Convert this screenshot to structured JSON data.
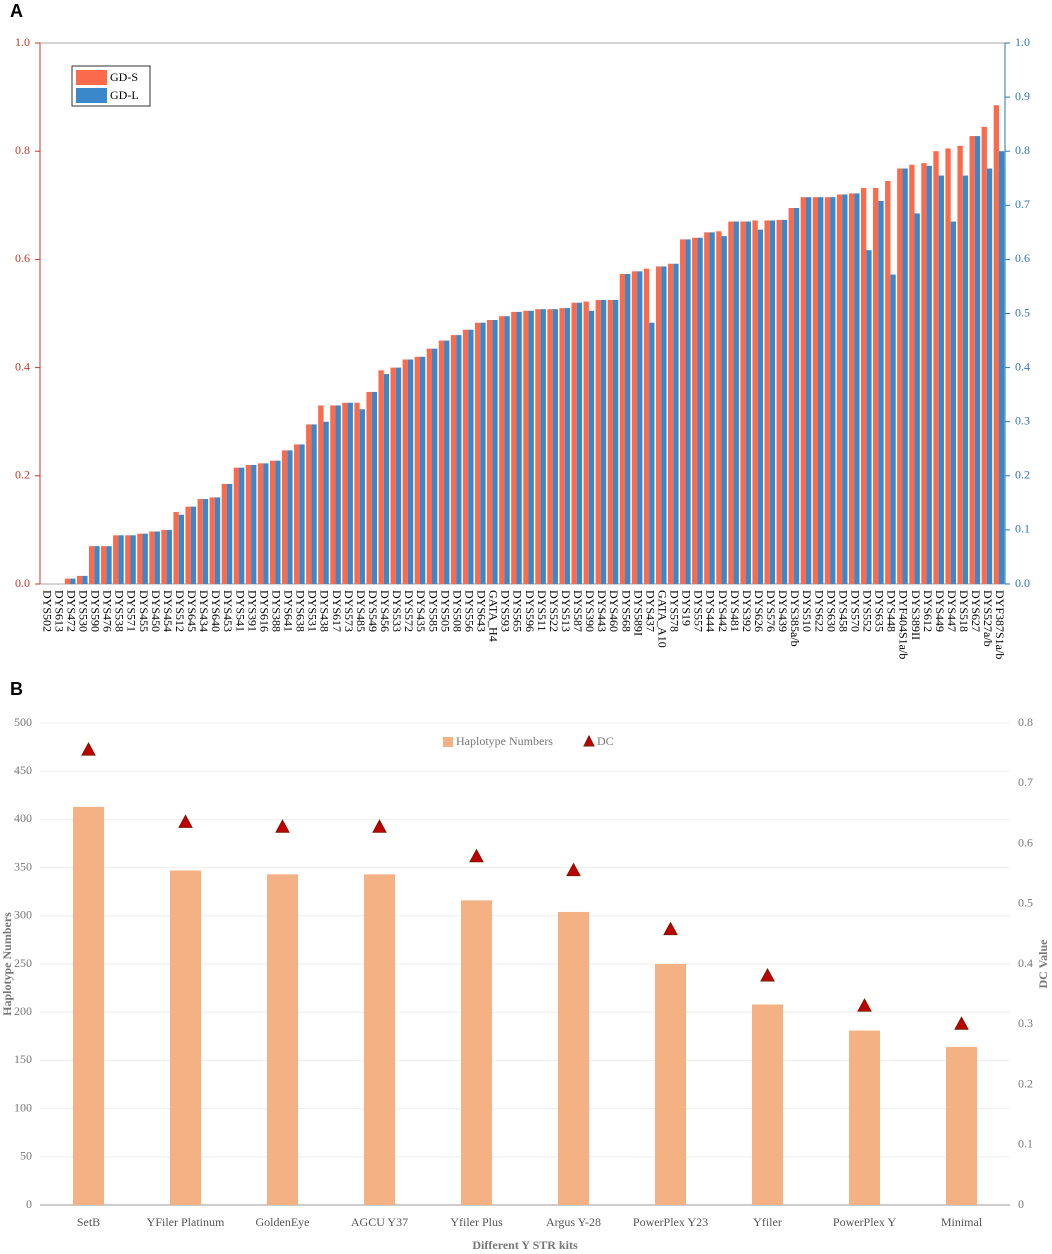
{
  "chart_data": [
    {
      "type": "bar",
      "label": "A",
      "categories": [
        "DYS502",
        "DYS613",
        "DYS472",
        "DYS530",
        "DYS590",
        "DYS476",
        "DYS538",
        "DYS571",
        "DYS455",
        "DYS450",
        "DYS454",
        "DYS512",
        "DYS645",
        "DYS434",
        "DYS640",
        "DYS453",
        "DYS541",
        "DYS391",
        "DYS616",
        "DYS388",
        "DYS641",
        "DYS638",
        "DYS531",
        "DYS438",
        "DYS617",
        "DYS573",
        "DYS485",
        "DYS549",
        "DYS456",
        "DYS533",
        "DYS572",
        "DYS435",
        "DYS585",
        "DYS505",
        "DYS508",
        "DYS556",
        "DYS643",
        "GATA_H4",
        "DYS593",
        "DYS565",
        "DYS596",
        "DYS511",
        "DYS522",
        "DYS513",
        "DYS587",
        "DYS390",
        "DYS443",
        "DYS460",
        "DYS568",
        "DYS589I",
        "DYS437",
        "GATA_A10",
        "DYS578",
        "DYS19",
        "DYS557",
        "DYS444",
        "DYS442",
        "DYS481",
        "DYS392",
        "DYS626",
        "DYS576",
        "DYS439",
        "DYS385a/b",
        "DYS510",
        "DYS622",
        "DYS630",
        "DYS458",
        "DYS570",
        "DYS552",
        "DYS635",
        "DYS448",
        "DYF404S1a/b",
        "DYS389II",
        "DYS612",
        "DYS449",
        "DYS447",
        "DYS518",
        "DYS627",
        "DYS527a/b",
        "DYF387S1a/b"
      ],
      "series": [
        {
          "name": "GD-S",
          "color": "#fb6a4a",
          "values": [
            0,
            0,
            0.01,
            0.015,
            0.07,
            0.07,
            0.09,
            0.09,
            0.093,
            0.097,
            0.1,
            0.133,
            0.143,
            0.157,
            0.16,
            0.185,
            0.215,
            0.22,
            0.223,
            0.228,
            0.247,
            0.258,
            0.295,
            0.33,
            0.33,
            0.335,
            0.335,
            0.355,
            0.395,
            0.4,
            0.415,
            0.42,
            0.435,
            0.45,
            0.46,
            0.47,
            0.483,
            0.488,
            0.495,
            0.503,
            0.505,
            0.508,
            0.508,
            0.51,
            0.52,
            0.522,
            0.525,
            0.525,
            0.573,
            0.578,
            0.583,
            0.587,
            0.592,
            0.637,
            0.64,
            0.65,
            0.652,
            0.67,
            0.67,
            0.672,
            0.672,
            0.673,
            0.695,
            0.715,
            0.715,
            0.715,
            0.72,
            0.722,
            0.732,
            0.732,
            0.745,
            0.768,
            0.775,
            0.778,
            0.8,
            0.805,
            0.81,
            0.828,
            0.845,
            0.885
          ]
        },
        {
          "name": "GD-L",
          "color": "#3a87c9",
          "axis": "y2",
          "values": [
            0,
            0,
            0.01,
            0.015,
            0.07,
            0.07,
            0.09,
            0.09,
            0.093,
            0.097,
            0.1,
            0.128,
            0.143,
            0.157,
            0.16,
            0.185,
            0.215,
            0.22,
            0.223,
            0.228,
            0.247,
            0.258,
            0.295,
            0.3,
            0.33,
            0.335,
            0.323,
            0.355,
            0.388,
            0.4,
            0.415,
            0.42,
            0.435,
            0.45,
            0.46,
            0.47,
            0.483,
            0.488,
            0.495,
            0.503,
            0.505,
            0.508,
            0.508,
            0.51,
            0.52,
            0.505,
            0.525,
            0.525,
            0.573,
            0.578,
            0.483,
            0.587,
            0.592,
            0.637,
            0.64,
            0.65,
            0.643,
            0.67,
            0.67,
            0.655,
            0.672,
            0.673,
            0.695,
            0.715,
            0.715,
            0.715,
            0.72,
            0.722,
            0.617,
            0.708,
            0.572,
            0.768,
            0.685,
            0.773,
            0.755,
            0.67,
            0.755,
            0.828,
            0.768,
            0.8
          ]
        }
      ],
      "ylim": [
        0,
        1
      ],
      "yticks": [
        {
          "value": 0,
          "label": "0.0"
        },
        0.2,
        0.4,
        0.6,
        0.8,
        {
          "value": 1,
          "label": "1.0"
        }
      ],
      "y2lim": [
        0,
        1
      ],
      "y2ticks": [
        {
          "value": 0,
          "label": "0.0"
        },
        0.1,
        0.2,
        0.3,
        0.4,
        0.5,
        0.6,
        0.7,
        0.8,
        0.9,
        {
          "value": 1,
          "label": "1.0"
        }
      ],
      "legend": "upper left"
    },
    {
      "type": "combo",
      "label": "B",
      "xlabel": "Different Y STR kits",
      "ylabel": "Haplotype Numbers",
      "y2label": "DC Value",
      "categories": [
        "SetB",
        "YFiler Platinum",
        "GoldenEye",
        "AGCU Y37",
        "Yfiler Plus",
        "Argus Y-28",
        "PowerPlex Y23",
        "Yfiler",
        "PowerPlex Y",
        "Minimal"
      ],
      "series": [
        {
          "name": "Haplotype Numbers",
          "type": "bar",
          "color": "#f4b183",
          "values": [
            413,
            347,
            343,
            343,
            316,
            304,
            250,
            208,
            181,
            164
          ]
        },
        {
          "name": "DC",
          "type": "scatter",
          "axis": "y2",
          "color": "#c00000",
          "values": [
            0.755,
            0.635,
            0.627,
            0.627,
            0.578,
            0.555,
            0.457,
            0.38,
            0.33,
            0.3
          ]
        }
      ],
      "ylim": [
        0,
        500
      ],
      "yticks": [
        0,
        50,
        100,
        150,
        200,
        250,
        300,
        350,
        400,
        450,
        500
      ],
      "y2lim": [
        0,
        0.8
      ],
      "y2ticks": [
        0,
        0.1,
        0.2,
        0.3,
        0.4,
        0.5,
        0.6,
        0.7,
        0.8
      ],
      "grid": true,
      "legend": "upper center"
    }
  ]
}
